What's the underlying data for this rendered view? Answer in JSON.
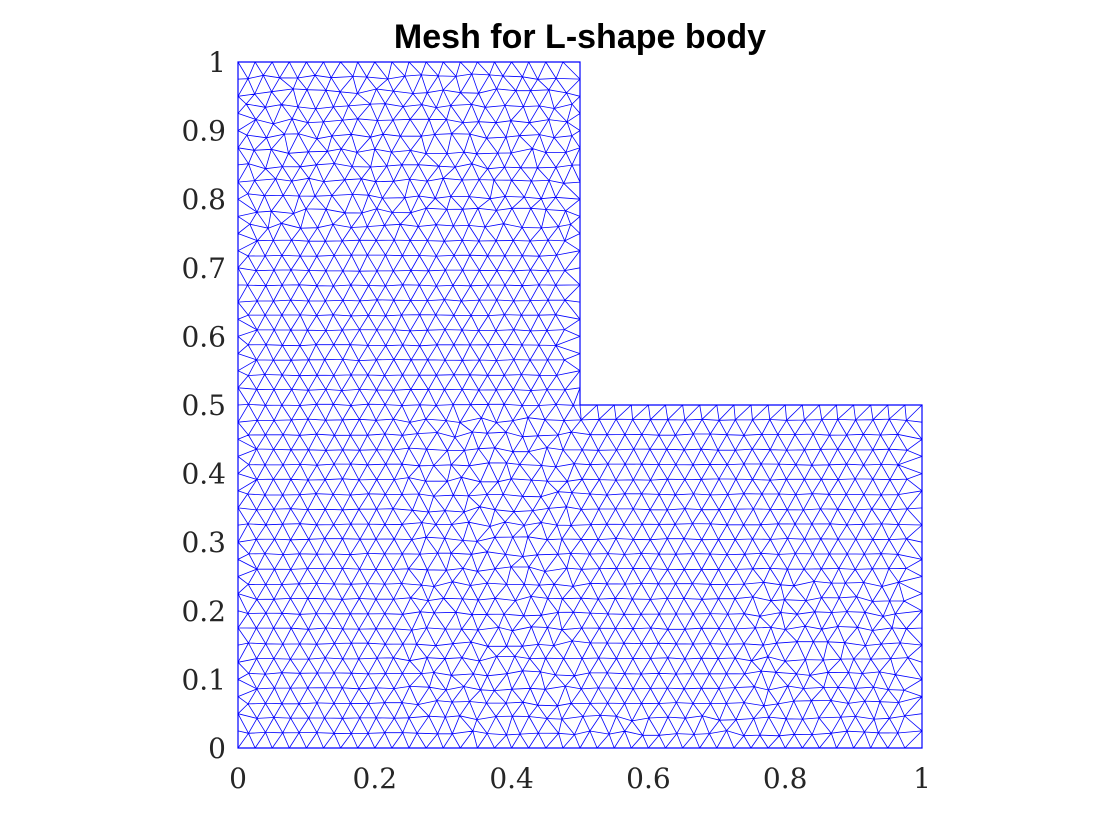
{
  "chart_data": {
    "type": "mesh",
    "title": "Mesh for L-shape body",
    "xlabel": "",
    "ylabel": "",
    "xlim": [
      0,
      1
    ],
    "ylim": [
      0,
      1
    ],
    "x_ticks": [
      "0",
      "0.2",
      "0.4",
      "0.6",
      "0.8",
      "1"
    ],
    "y_ticks": [
      "0",
      "0.1",
      "0.2",
      "0.3",
      "0.4",
      "0.5",
      "0.6",
      "0.7",
      "0.8",
      "0.9",
      "1"
    ],
    "grid": false,
    "mesh_color": "#0000ff",
    "element_type": "triangular",
    "domain_outline": [
      [
        0,
        0
      ],
      [
        1,
        0
      ],
      [
        1,
        0.5
      ],
      [
        0.5,
        0.5
      ],
      [
        0.5,
        1
      ],
      [
        0,
        1
      ]
    ],
    "structured_patches": [
      {
        "x": [
          0,
          0.25
        ],
        "y": [
          0,
          0.75
        ]
      },
      {
        "x": [
          0.25,
          0.5
        ],
        "y": [
          0.5,
          0.75
        ]
      },
      {
        "x": [
          0.4,
          0.5
        ],
        "y": [
          0.5,
          0.75
        ]
      },
      {
        "x": [
          0.5,
          0.75
        ],
        "y": [
          0.05,
          0.5
        ]
      },
      {
        "x": [
          0.75,
          1.0
        ],
        "y": [
          0.25,
          0.5
        ]
      }
    ]
  }
}
